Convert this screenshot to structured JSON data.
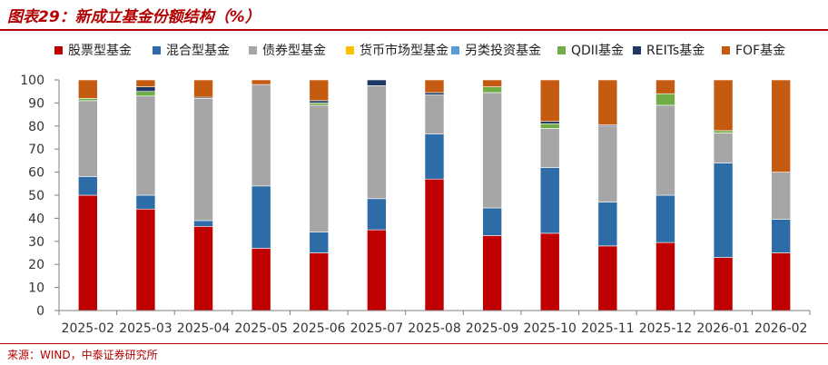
{
  "header": {
    "title": "图表29：新成立基金份额结构（%）"
  },
  "footer": {
    "source": "来源：WIND，中泰证券研究所"
  },
  "chart_data": {
    "type": "bar",
    "stacked": true,
    "title": "新成立基金份额结构（%）",
    "xlabel": "",
    "ylabel": "",
    "ylim": [
      0,
      100
    ],
    "yticks": [
      0,
      10,
      20,
      30,
      40,
      50,
      60,
      70,
      80,
      90,
      100
    ],
    "grid": false,
    "legend_position": "top",
    "categories": [
      "2025-02",
      "2025-03",
      "2025-04",
      "2025-05",
      "2025-06",
      "2025-07",
      "2025-08",
      "2025-09",
      "2025-10",
      "2025-11",
      "2025-12",
      "2026-01",
      "2026-02"
    ],
    "series": [
      {
        "name": "股票型基金",
        "color": "#c00000",
        "values": [
          50,
          44,
          36.5,
          27,
          25,
          35,
          57,
          32.5,
          33.5,
          28,
          29.5,
          23,
          25
        ]
      },
      {
        "name": "混合型基金",
        "color": "#2e6ca8",
        "values": [
          8,
          6,
          2.5,
          27,
          9,
          13.5,
          19.5,
          12,
          28.5,
          19,
          20.5,
          41,
          14.5
        ]
      },
      {
        "name": "债券型基金",
        "color": "#a6a6a6",
        "values": [
          33,
          43,
          53,
          44,
          55,
          49,
          17,
          50,
          17,
          33,
          39,
          13,
          20.5
        ]
      },
      {
        "name": "货币市场型基金",
        "color": "#ffc000",
        "values": [
          0,
          0,
          0,
          0,
          0,
          0,
          0,
          0,
          0,
          0,
          0,
          0,
          0
        ]
      },
      {
        "name": "另类投资基金",
        "color": "#5b9bd5",
        "values": [
          0,
          0,
          0,
          0,
          0,
          0,
          0,
          0,
          0,
          0,
          0,
          0,
          0
        ]
      },
      {
        "name": "QDII基金",
        "color": "#70ad47",
        "values": [
          1,
          2,
          0,
          0,
          1,
          0,
          0,
          2.5,
          2,
          0,
          5,
          1,
          0
        ]
      },
      {
        "name": "REITs基金",
        "color": "#203864",
        "values": [
          0,
          2,
          0.5,
          0,
          1,
          2.5,
          1,
          0,
          1,
          0.5,
          0,
          0,
          0
        ]
      },
      {
        "name": "FOF基金",
        "color": "#c55a11",
        "values": [
          8,
          3,
          7.5,
          2,
          9,
          0,
          5.5,
          3,
          18,
          19.5,
          6,
          22,
          40
        ]
      }
    ]
  }
}
